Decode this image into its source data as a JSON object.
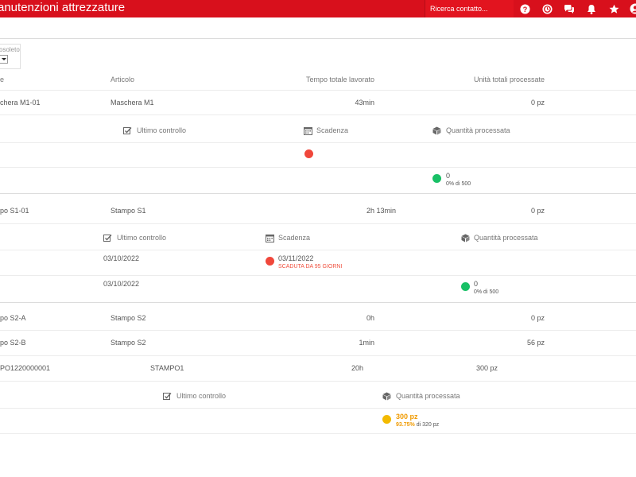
{
  "header": {
    "title": "anutenzioni attrezzature",
    "search_placeholder": "Ricerca contatto..."
  },
  "colors": {
    "brand": "#d8101c",
    "status_red": "#f0473b",
    "status_green": "#18c066",
    "status_yellow": "#f3ba00"
  },
  "filter": {
    "label": "osoleto"
  },
  "table": {
    "col_first": "e",
    "col_article": "Articolo",
    "col_total_time": "Tempo totale lavorato",
    "col_total_units": "Unità totali processate"
  },
  "rows": [
    {
      "code": "chera M1-01",
      "article": "Maschera M1",
      "time": "43min",
      "units": "0 pz"
    },
    {
      "code": "po S1-01",
      "article": "Stampo S1",
      "time": "2h 13min",
      "units": "0 pz"
    },
    {
      "code": "po S2-A",
      "article": "Stampo S2",
      "time": "0h",
      "units": "0 pz"
    },
    {
      "code": "po S2-B",
      "article": "Stampo S2",
      "time": "1min",
      "units": "56 pz"
    },
    {
      "code": "PO1220000001",
      "article": "STAMPO1",
      "time": "20h",
      "units": "300 pz"
    }
  ],
  "details": {
    "last_check": "Ultimo controllo",
    "deadline": "Scadenza",
    "qty_processed": "Quantità processata"
  },
  "m1_detail": {
    "qty": "0",
    "qty_sub": "0% di 500"
  },
  "s1_detail": {
    "check1": "03/10/2022",
    "deadline": "03/11/2022",
    "deadline_sub": "SCADUTA DA 95 GIORNI",
    "check2": "03/10/2022",
    "qty": "0",
    "qty_sub": "0% di 500"
  },
  "stampo1_detail": {
    "qty": "300 pz",
    "pct": "93.75%",
    "of": " di 320 pz"
  }
}
